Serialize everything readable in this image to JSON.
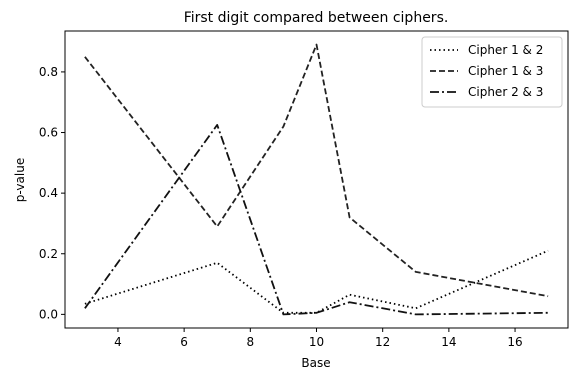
{
  "chart_data": {
    "type": "line",
    "title": "First digit compared between ciphers.",
    "xlabel": "Base",
    "ylabel": "p-value",
    "xlim": [
      2.4,
      17.6
    ],
    "ylim": [
      -0.045,
      0.935
    ],
    "xticks": [
      4,
      6,
      8,
      10,
      12,
      14,
      16
    ],
    "yticks": [
      0.0,
      0.2,
      0.4,
      0.6,
      0.8
    ],
    "xtick_labels": [
      "4",
      "6",
      "8",
      "10",
      "12",
      "14",
      "16"
    ],
    "ytick_labels": [
      "0.0",
      "0.2",
      "0.4",
      "0.6",
      "0.8"
    ],
    "grid": false,
    "legend_position": "top-right",
    "series": [
      {
        "name": "Cipher 1 & 2",
        "style": "dotted",
        "color": "#000000",
        "x": [
          3,
          7,
          9,
          10,
          11,
          13,
          17
        ],
        "y": [
          0.035,
          0.17,
          0.005,
          0.005,
          0.065,
          0.02,
          0.21
        ]
      },
      {
        "name": "Cipher 1 & 3",
        "style": "dashed",
        "color": "#222222",
        "x": [
          3,
          7,
          9,
          10,
          11,
          13,
          17
        ],
        "y": [
          0.85,
          0.29,
          0.62,
          0.89,
          0.32,
          0.14,
          0.06
        ]
      },
      {
        "name": "Cipher 2 & 3",
        "style": "dashdot",
        "color": "#111111",
        "x": [
          3,
          7,
          9,
          10,
          11,
          13,
          17
        ],
        "y": [
          0.02,
          0.625,
          0.0,
          0.005,
          0.04,
          0.0,
          0.005
        ]
      }
    ]
  }
}
